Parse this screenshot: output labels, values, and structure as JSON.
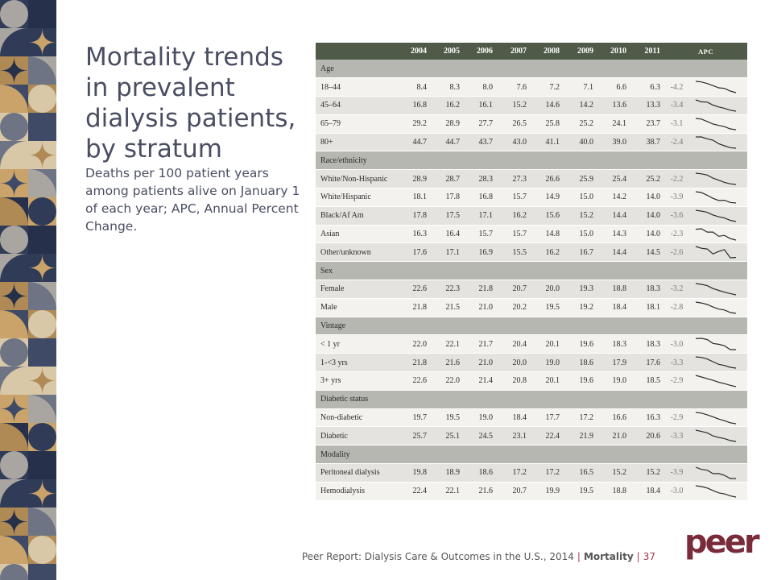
{
  "slide": {
    "title": "Mortality trends in prevalent dialysis patients, by stratum",
    "subtitle": "Deaths per 100 patient years among patients alive on January 1 of each year; APC, Annual Percent Change."
  },
  "footer": {
    "report": "Peer Report: Dialysis Care & Outcomes in the U.S., 2014",
    "sep1": "|",
    "section": "Mortality",
    "sep2": "|",
    "page": "37"
  },
  "logo": {
    "text": "peer",
    "color": "#7a2b3a"
  },
  "colors": {
    "header": "#4f5a48",
    "group": "#b7b7b1",
    "accent": "#9a3a4a"
  },
  "chart_data": {
    "type": "table",
    "columns": [
      "2004",
      "2005",
      "2006",
      "2007",
      "2008",
      "2009",
      "2010",
      "2011",
      "APC"
    ],
    "groups": [
      {
        "name": "Age",
        "rows": [
          {
            "label": "18–44",
            "values": [
              "8.4",
              "8.3",
              "8.0",
              "7.6",
              "7.2",
              "7.1",
              "6.6",
              "6.3"
            ],
            "apc": "-4.2"
          },
          {
            "label": "45–64",
            "values": [
              "16.8",
              "16.2",
              "16.1",
              "15.2",
              "14.6",
              "14.2",
              "13.6",
              "13.3"
            ],
            "apc": "-3.4"
          },
          {
            "label": "65–79",
            "values": [
              "29.2",
              "28.9",
              "27.7",
              "26.5",
              "25.8",
              "25.2",
              "24.1",
              "23.7"
            ],
            "apc": "-3.1"
          },
          {
            "label": "80+",
            "values": [
              "44.7",
              "44.7",
              "43.7",
              "43.0",
              "41.1",
              "40.0",
              "39.0",
              "38.7"
            ],
            "apc": "-2.4"
          }
        ]
      },
      {
        "name": "Race/ethnicity",
        "rows": [
          {
            "label": "White/Non-Hispanic",
            "values": [
              "28.9",
              "28.7",
              "28.3",
              "27.3",
              "26.6",
              "25.9",
              "25.4",
              "25.2"
            ],
            "apc": "-2.2"
          },
          {
            "label": "White/Hispanic",
            "values": [
              "18.1",
              "17.8",
              "16.8",
              "15.7",
              "14.9",
              "15.0",
              "14.2",
              "14.0"
            ],
            "apc": "-3.9"
          },
          {
            "label": "Black/Af Am",
            "values": [
              "17.8",
              "17.5",
              "17.1",
              "16.2",
              "15.6",
              "15.2",
              "14.4",
              "14.0"
            ],
            "apc": "-3.6"
          },
          {
            "label": "Asian",
            "values": [
              "16.3",
              "16.4",
              "15.7",
              "15.7",
              "14.8",
              "15.0",
              "14.3",
              "14.0"
            ],
            "apc": "-2.3"
          },
          {
            "label": "Other/unknown",
            "values": [
              "17.6",
              "17.1",
              "16.9",
              "15.5",
              "16.2",
              "16.7",
              "14.4",
              "14.5"
            ],
            "apc": "-2.6"
          }
        ]
      },
      {
        "name": "Sex",
        "rows": [
          {
            "label": "Female",
            "values": [
              "22.6",
              "22.3",
              "21.8",
              "20.7",
              "20.0",
              "19.3",
              "18.8",
              "18.3"
            ],
            "apc": "-3.2"
          },
          {
            "label": "Male",
            "values": [
              "21.8",
              "21.5",
              "21.0",
              "20.2",
              "19.5",
              "19.2",
              "18.4",
              "18.1"
            ],
            "apc": "-2.8"
          }
        ]
      },
      {
        "name": "Vintage",
        "rows": [
          {
            "label": "< 1 yr",
            "values": [
              "22.0",
              "22.1",
              "21.7",
              "20.4",
              "20.1",
              "19.6",
              "18.3",
              "18.3"
            ],
            "apc": "-3.0"
          },
          {
            "label": "1-<3 yrs",
            "values": [
              "21.8",
              "21.6",
              "21.0",
              "20.0",
              "19.0",
              "18.6",
              "17.9",
              "17.6"
            ],
            "apc": "-3.3"
          },
          {
            "label": "3+ yrs",
            "values": [
              "22.6",
              "22.0",
              "21.4",
              "20.8",
              "20.1",
              "19.6",
              "19.0",
              "18.5"
            ],
            "apc": "-2.9"
          }
        ]
      },
      {
        "name": "Diabetic status",
        "rows": [
          {
            "label": "Non-diabetic",
            "values": [
              "19.7",
              "19.5",
              "19.0",
              "18.4",
              "17.7",
              "17.2",
              "16.6",
              "16.3"
            ],
            "apc": "-2.9"
          },
          {
            "label": "Diabetic",
            "values": [
              "25.7",
              "25.1",
              "24.5",
              "23.1",
              "22.4",
              "21.9",
              "21.0",
              "20.6"
            ],
            "apc": "-3.3"
          }
        ]
      },
      {
        "name": "Modality",
        "rows": [
          {
            "label": "Peritoneal dialysis",
            "values": [
              "19.8",
              "18.9",
              "18.6",
              "17.2",
              "17.2",
              "16.5",
              "15.2",
              "15.2"
            ],
            "apc": "-3.9"
          },
          {
            "label": "Hemodialysis",
            "values": [
              "22.4",
              "22.1",
              "21.6",
              "20.7",
              "19.9",
              "19.5",
              "18.8",
              "18.4"
            ],
            "apc": "-3.0"
          }
        ]
      }
    ]
  }
}
